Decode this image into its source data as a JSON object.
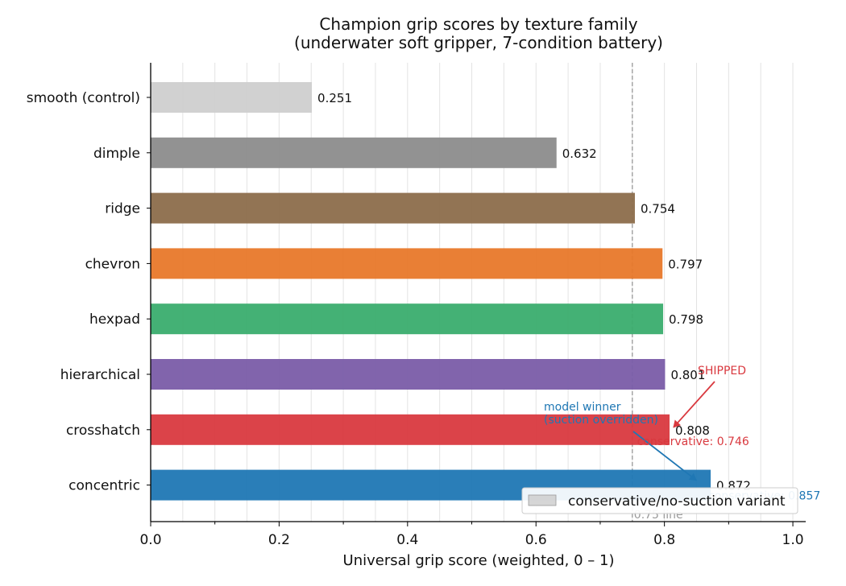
{
  "chart_data": {
    "type": "bar",
    "orientation": "horizontal",
    "title": "Champion grip scores by texture family",
    "subtitle": "(underwater soft gripper, 7-condition battery)",
    "xlabel": "Universal grip score (weighted, 0 – 1)",
    "ylabel": "",
    "xlim": [
      0,
      1.02
    ],
    "x_ticks": [
      0.0,
      0.2,
      0.4,
      0.6,
      0.8,
      1.0
    ],
    "x_tick_labels": [
      "0.0",
      "0.2",
      "0.4",
      "0.6",
      "0.8",
      "1.0"
    ],
    "grid": "vertical minor lines",
    "categories": [
      "smooth (control)",
      "dimple",
      "ridge",
      "chevron",
      "hexpad",
      "hierarchical",
      "crosshatch",
      "concentric"
    ],
    "values": [
      0.251,
      0.632,
      0.754,
      0.797,
      0.798,
      0.801,
      0.808,
      0.872
    ],
    "value_labels": [
      "0.251",
      "0.632",
      "0.754",
      "0.797",
      "0.798",
      "0.801",
      "0.808",
      "0.872"
    ],
    "colors": [
      "#cfcfcf",
      "#8c8c8c",
      "#8c6d4b",
      "#e8782a",
      "#3aad6e",
      "#7a5ca8",
      "#d9393f",
      "#1f77b4"
    ],
    "reference_line": {
      "value": 0.75,
      "label": "0.75 line",
      "color": "#999999"
    },
    "conservative_variants": [
      {
        "category": "crosshatch",
        "value": 0.746,
        "label": "conservative: 0.746",
        "color": "#d9393f"
      },
      {
        "category": "concentric",
        "value": 0.857,
        "label": "conservative: 0.857",
        "color": "#1f77b4"
      }
    ],
    "annotations": [
      {
        "text": "SHIPPED",
        "target": "crosshatch",
        "color": "#d9393f"
      },
      {
        "text": "model winner\n(suction overridden)",
        "target": "concentric",
        "color": "#1f77b4"
      }
    ],
    "legend": {
      "position": "lower-right",
      "entries": [
        {
          "label": "conservative/no-suction variant",
          "color": "#cccccc"
        }
      ]
    }
  }
}
